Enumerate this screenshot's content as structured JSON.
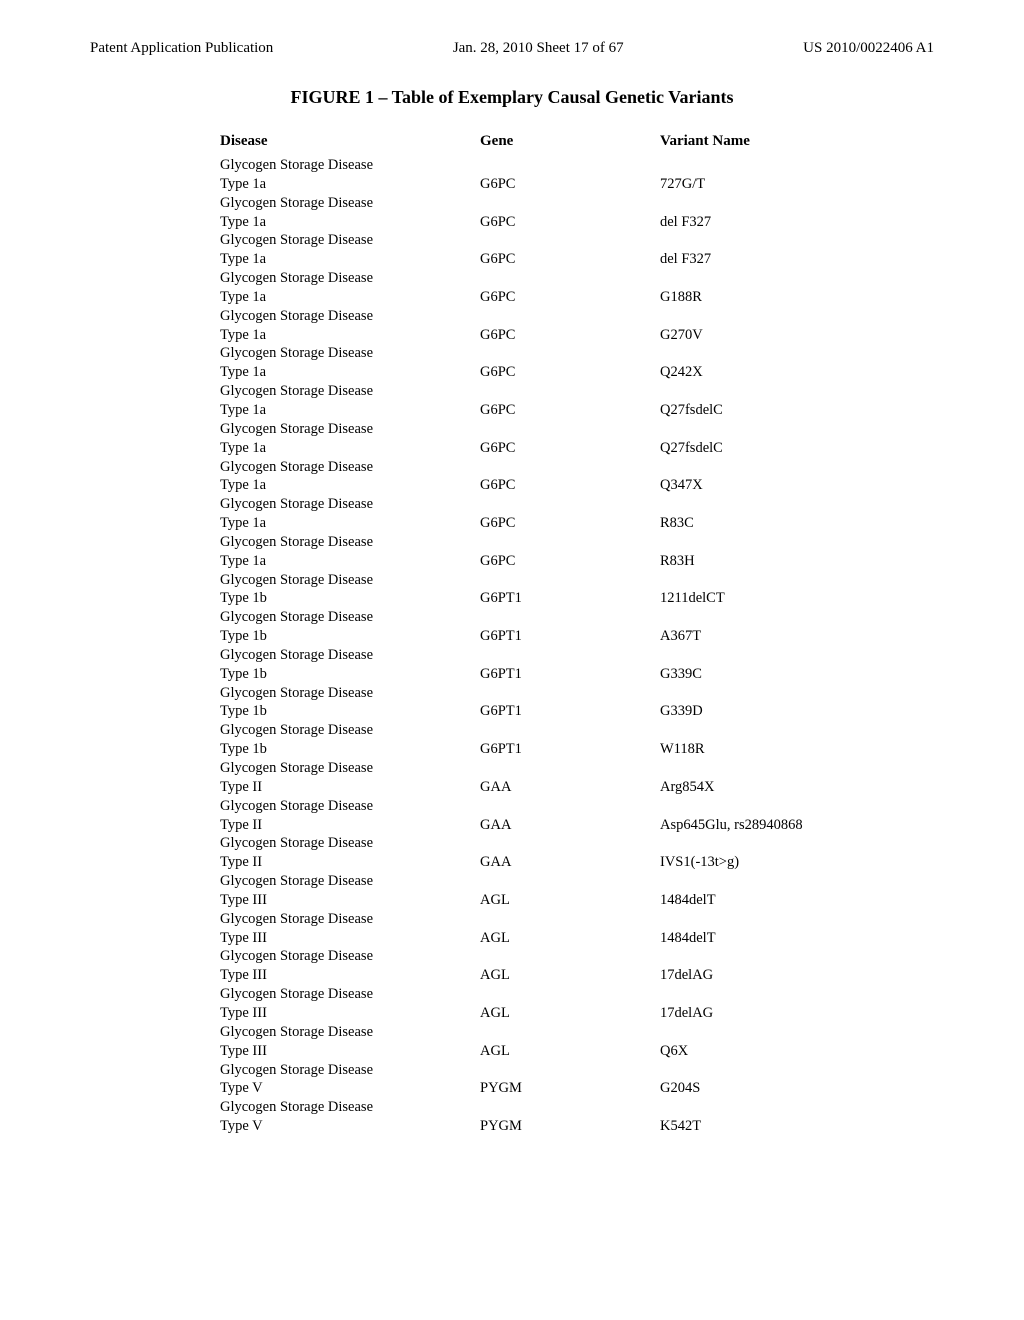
{
  "header": {
    "left": "Patent Application Publication",
    "center": "Jan. 28, 2010  Sheet 17 of 67",
    "right": "US 2010/0022406 A1"
  },
  "figure_title": "FIGURE 1 – Table of Exemplary Causal Genetic Variants",
  "columns": {
    "disease": "Disease",
    "gene": "Gene",
    "variant": "Variant Name"
  },
  "rows": [
    {
      "disease_l1": "Glycogen Storage Disease",
      "disease_l2": "Type 1a",
      "gene": "G6PC",
      "variant": "727G/T"
    },
    {
      "disease_l1": "Glycogen Storage Disease",
      "disease_l2": "Type 1a",
      "gene": "G6PC",
      "variant": "del F327"
    },
    {
      "disease_l1": "Glycogen Storage Disease",
      "disease_l2": "Type 1a",
      "gene": "G6PC",
      "variant": "del F327"
    },
    {
      "disease_l1": "Glycogen Storage Disease",
      "disease_l2": "Type 1a",
      "gene": "G6PC",
      "variant": "G188R"
    },
    {
      "disease_l1": "Glycogen Storage Disease",
      "disease_l2": "Type 1a",
      "gene": "G6PC",
      "variant": "G270V"
    },
    {
      "disease_l1": "Glycogen Storage Disease",
      "disease_l2": "Type 1a",
      "gene": "G6PC",
      "variant": "Q242X"
    },
    {
      "disease_l1": "Glycogen Storage Disease",
      "disease_l2": "Type 1a",
      "gene": "G6PC",
      "variant": "Q27fsdelC"
    },
    {
      "disease_l1": "Glycogen Storage Disease",
      "disease_l2": "Type 1a",
      "gene": "G6PC",
      "variant": "Q27fsdelC"
    },
    {
      "disease_l1": "Glycogen Storage Disease",
      "disease_l2": "Type 1a",
      "gene": "G6PC",
      "variant": "Q347X"
    },
    {
      "disease_l1": "Glycogen Storage Disease",
      "disease_l2": "Type 1a",
      "gene": "G6PC",
      "variant": "R83C"
    },
    {
      "disease_l1": "Glycogen Storage Disease",
      "disease_l2": "Type 1a",
      "gene": "G6PC",
      "variant": "R83H"
    },
    {
      "disease_l1": "Glycogen Storage Disease",
      "disease_l2": "Type 1b",
      "gene": "G6PT1",
      "variant": "1211delCT"
    },
    {
      "disease_l1": "Glycogen Storage Disease",
      "disease_l2": "Type 1b",
      "gene": "G6PT1",
      "variant": "A367T"
    },
    {
      "disease_l1": "Glycogen Storage Disease",
      "disease_l2": "Type 1b",
      "gene": "G6PT1",
      "variant": "G339C"
    },
    {
      "disease_l1": "Glycogen Storage Disease",
      "disease_l2": "Type 1b",
      "gene": "G6PT1",
      "variant": "G339D"
    },
    {
      "disease_l1": "Glycogen Storage Disease",
      "disease_l2": "Type 1b",
      "gene": "G6PT1",
      "variant": "W118R"
    },
    {
      "disease_l1": "Glycogen Storage Disease",
      "disease_l2": "Type II",
      "gene": "GAA",
      "variant": "Arg854X"
    },
    {
      "disease_l1": "Glycogen Storage Disease",
      "disease_l2": "Type II",
      "gene": "GAA",
      "variant": "Asp645Glu, rs28940868"
    },
    {
      "disease_l1": "Glycogen Storage Disease",
      "disease_l2": "Type II",
      "gene": "GAA",
      "variant": "IVS1(-13t>g)"
    },
    {
      "disease_l1": "Glycogen Storage Disease",
      "disease_l2": "Type III",
      "gene": "AGL",
      "variant": "1484delT"
    },
    {
      "disease_l1": "Glycogen Storage Disease",
      "disease_l2": "Type III",
      "gene": "AGL",
      "variant": "1484delT"
    },
    {
      "disease_l1": "Glycogen Storage Disease",
      "disease_l2": "Type III",
      "gene": "AGL",
      "variant": "17delAG"
    },
    {
      "disease_l1": "Glycogen Storage Disease",
      "disease_l2": "Type III",
      "gene": "AGL",
      "variant": "17delAG"
    },
    {
      "disease_l1": "Glycogen Storage Disease",
      "disease_l2": "Type III",
      "gene": "AGL",
      "variant": "Q6X"
    },
    {
      "disease_l1": "Glycogen Storage Disease",
      "disease_l2": "Type V",
      "gene": "PYGM",
      "variant": "G204S"
    },
    {
      "disease_l1": "Glycogen Storage Disease",
      "disease_l2": "Type V",
      "gene": "PYGM",
      "variant": "K542T"
    }
  ]
}
